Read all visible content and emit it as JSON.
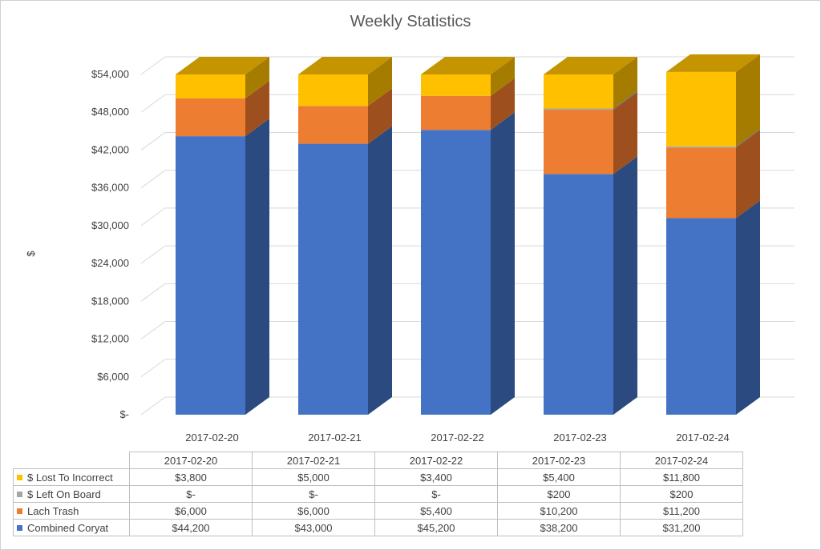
{
  "chart_data": {
    "type": "bar",
    "stacked": true,
    "three_d": true,
    "title": "Weekly Statistics",
    "xlabel": "",
    "ylabel": "$",
    "ylim": [
      0,
      54000
    ],
    "y_ticks": [
      0,
      6000,
      12000,
      18000,
      24000,
      30000,
      36000,
      42000,
      48000,
      54000
    ],
    "y_tick_labels": [
      "$-",
      "$6,000",
      "$12,000",
      "$18,000",
      "$24,000",
      "$30,000",
      "$36,000",
      "$42,000",
      "$48,000",
      "$54,000"
    ],
    "grid": true,
    "legend_placement": "data table below chart",
    "categories": [
      "2017-02-20",
      "2017-02-21",
      "2017-02-22",
      "2017-02-23",
      "2017-02-24"
    ],
    "series": [
      {
        "name": "Combined Coryat",
        "color": "#4472c4",
        "side_color": "#2b4a80",
        "top_color": "#3a5fa3",
        "values": [
          44200,
          43000,
          45200,
          38200,
          31200
        ],
        "labels": [
          "$44,200",
          "$43,000",
          "$45,200",
          "$38,200",
          "$31,200"
        ]
      },
      {
        "name": "Lach Trash",
        "color": "#ed7d31",
        "side_color": "#9e4f1e",
        "top_color": "#c8692a",
        "values": [
          6000,
          6000,
          5400,
          10200,
          11200
        ],
        "labels": [
          "$6,000",
          "$6,000",
          "$5,400",
          "$10,200",
          "$11,200"
        ]
      },
      {
        "name": "$ Left On Board",
        "color": "#a5a5a5",
        "side_color": "#6e6e6e",
        "top_color": "#8c8c8c",
        "values": [
          0,
          0,
          0,
          200,
          200
        ],
        "labels": [
          "$-",
          "$-",
          "$-",
          "$200",
          "$200"
        ]
      },
      {
        "name": "$ Lost To Incorrect",
        "color": "#ffc000",
        "side_color": "#a67c00",
        "top_color": "#c49500",
        "values": [
          3800,
          5000,
          3400,
          5400,
          11800
        ],
        "labels": [
          "$3,800",
          "$5,000",
          "$3,400",
          "$5,400",
          "$11,800"
        ]
      }
    ],
    "table_row_order": [
      "$ Lost To Incorrect",
      "$ Left On Board",
      "Lach Trash",
      "Combined Coryat"
    ]
  }
}
